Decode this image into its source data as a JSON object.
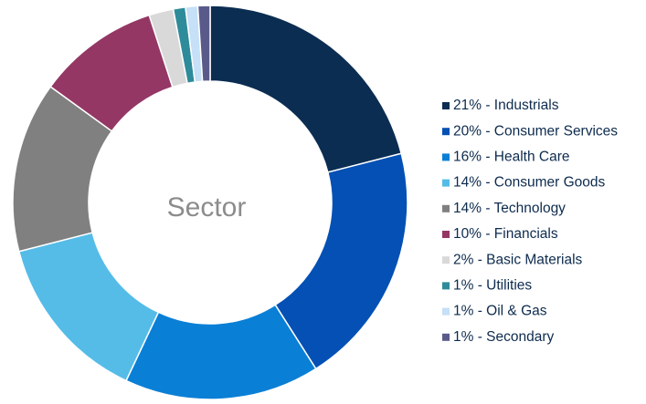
{
  "chart_data": {
    "type": "donut",
    "title": "Sector",
    "categories": [
      "21% - Industrials",
      "20% - Consumer Services",
      "16% - Health Care",
      "14% - Consumer Goods",
      "14% - Technology",
      "10% - Financials",
      "2% - Basic Materials",
      "1% - Utilities",
      "1% - Oil & Gas",
      "1% - Secondary"
    ],
    "values": [
      21,
      20,
      16,
      14,
      14,
      10,
      2,
      1,
      1,
      1
    ],
    "colors": [
      "#0b2d52",
      "#0450b4",
      "#0a7fd6",
      "#55bce8",
      "#808080",
      "#943764",
      "#d9d9d9",
      "#2e8b9a",
      "#c5e0f7",
      "#5a5a8a"
    ],
    "legend": "right"
  }
}
